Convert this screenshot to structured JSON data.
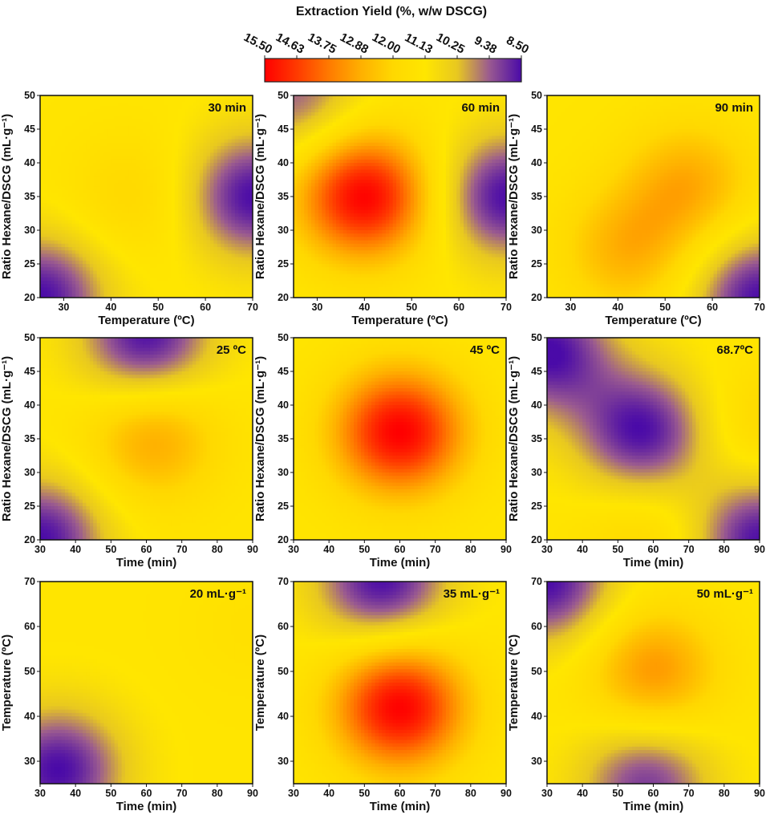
{
  "colorbar": {
    "title": "Extraction Yield (%, w/w DSCG)",
    "ticks": [
      "15.50",
      "14.63",
      "13.75",
      "12.88",
      "12.00",
      "11.13",
      "10.25",
      "9.38",
      "8.50"
    ],
    "stops": [
      "#ff0000",
      "#ff3a00",
      "#ff7a00",
      "#ffb000",
      "#ffd800",
      "#ffe600",
      "#e8c820",
      "#9a5a90",
      "#4a0aa8"
    ]
  },
  "chart_data": [
    {
      "type": "heatmap",
      "label": "30 min",
      "xlabel": "Temperature (ºC)",
      "ylabel": "Ratio Hexane/DSCG (mL·g⁻¹)",
      "xticks": [
        "30",
        "40",
        "50",
        "60",
        "70"
      ],
      "yticks": [
        "20",
        "25",
        "30",
        "35",
        "40",
        "45",
        "50"
      ],
      "xlim": [
        25,
        70
      ],
      "ylim": [
        20,
        50
      ],
      "peaks": [
        {
          "x": 45,
          "y": 35,
          "value": 12.0
        },
        {
          "x": 70,
          "y": 35,
          "value": 8.5
        },
        {
          "x": 25,
          "y": 20,
          "value": 8.5
        }
      ]
    },
    {
      "type": "heatmap",
      "label": "60 min",
      "xlabel": "Temperature (ºC)",
      "ylabel": "Ratio Hexane/DSCG (mL·g⁻¹)",
      "xticks": [
        "30",
        "40",
        "50",
        "60",
        "70"
      ],
      "yticks": [
        "20",
        "25",
        "30",
        "35",
        "40",
        "45",
        "50"
      ],
      "xlim": [
        25,
        70
      ],
      "ylim": [
        20,
        50
      ],
      "peaks": [
        {
          "x": 40,
          "y": 35,
          "value": 15.5
        },
        {
          "x": 70,
          "y": 35,
          "value": 8.5
        },
        {
          "x": 25,
          "y": 50,
          "value": 9.4
        }
      ]
    },
    {
      "type": "heatmap",
      "label": "90 min",
      "xlabel": "Temperature (ºC)",
      "ylabel": "Ratio Hexane/DSCG (mL·g⁻¹)",
      "xticks": [
        "30",
        "40",
        "50",
        "60",
        "70"
      ],
      "yticks": [
        "20",
        "25",
        "30",
        "35",
        "40",
        "45",
        "50"
      ],
      "xlim": [
        25,
        70
      ],
      "ylim": [
        20,
        50
      ],
      "peaks": [
        {
          "x": 55,
          "y": 37,
          "value": 12.9
        },
        {
          "x": 42,
          "y": 27,
          "value": 12.8
        },
        {
          "x": 70,
          "y": 20,
          "value": 8.5
        }
      ]
    },
    {
      "type": "heatmap",
      "label": "25 ºC",
      "xlabel": "Time (min)",
      "ylabel": "Ratio Hexane/DSCG (mL·g⁻¹)",
      "xticks": [
        "30",
        "40",
        "50",
        "60",
        "70",
        "80",
        "90"
      ],
      "yticks": [
        "20",
        "25",
        "30",
        "35",
        "40",
        "45",
        "50"
      ],
      "xlim": [
        30,
        90
      ],
      "ylim": [
        20,
        50
      ],
      "peaks": [
        {
          "x": 62,
          "y": 35,
          "value": 13.0
        },
        {
          "x": 60,
          "y": 50,
          "value": 8.5
        },
        {
          "x": 30,
          "y": 20,
          "value": 8.5
        }
      ]
    },
    {
      "type": "heatmap",
      "label": "45 ºC",
      "xlabel": "Time (min)",
      "ylabel": "Ratio Hexane/DSCG (mL·g⁻¹)",
      "xticks": [
        "30",
        "40",
        "50",
        "60",
        "70",
        "80",
        "90"
      ],
      "yticks": [
        "20",
        "25",
        "30",
        "35",
        "40",
        "45",
        "50"
      ],
      "xlim": [
        30,
        90
      ],
      "ylim": [
        20,
        50
      ],
      "peaks": [
        {
          "x": 60,
          "y": 36,
          "value": 15.5
        }
      ]
    },
    {
      "type": "heatmap",
      "label": "68.7ºC",
      "xlabel": "Time (min)",
      "ylabel": "Ratio Hexane/DSCG (mL·g⁻¹)",
      "xticks": [
        "30",
        "40",
        "50",
        "60",
        "70",
        "80",
        "90"
      ],
      "yticks": [
        "20",
        "25",
        "30",
        "35",
        "40",
        "45",
        "50"
      ],
      "xlim": [
        30,
        90
      ],
      "ylim": [
        20,
        50
      ],
      "peaks": [
        {
          "x": 57,
          "y": 36,
          "value": 8.5
        },
        {
          "x": 30,
          "y": 48,
          "value": 8.5
        },
        {
          "x": 90,
          "y": 20,
          "value": 8.5
        },
        {
          "x": 58,
          "y": 21,
          "value": 12.0
        },
        {
          "x": 90,
          "y": 37,
          "value": 12.0
        }
      ]
    },
    {
      "type": "heatmap",
      "label": "20 mL·g⁻¹",
      "xlabel": "Time (min)",
      "ylabel": "Temperature (ºC)",
      "xticks": [
        "30",
        "40",
        "50",
        "60",
        "70",
        "80",
        "90"
      ],
      "yticks": [
        "30",
        "40",
        "50",
        "60",
        "70"
      ],
      "xlim": [
        30,
        90
      ],
      "ylim": [
        25,
        70
      ],
      "peaks": [
        {
          "x": 35,
          "y": 28,
          "value": 8.5
        },
        {
          "x": 90,
          "y": 60,
          "value": 11.5
        }
      ]
    },
    {
      "type": "heatmap",
      "label": "35 mL·g⁻¹",
      "xlabel": "Time (min)",
      "ylabel": "Temperature (ºC)",
      "xticks": [
        "30",
        "40",
        "50",
        "60",
        "70",
        "80",
        "90"
      ],
      "yticks": [
        "30",
        "40",
        "50",
        "60",
        "70"
      ],
      "xlim": [
        30,
        90
      ],
      "ylim": [
        25,
        70
      ],
      "peaks": [
        {
          "x": 60,
          "y": 42,
          "value": 15.5
        },
        {
          "x": 55,
          "y": 70,
          "value": 8.5
        }
      ]
    },
    {
      "type": "heatmap",
      "label": "50 mL·g⁻¹",
      "xlabel": "Time (min)",
      "ylabel": "Temperature (ºC)",
      "xticks": [
        "30",
        "40",
        "50",
        "60",
        "70",
        "80",
        "90"
      ],
      "yticks": [
        "30",
        "40",
        "50",
        "60",
        "70"
      ],
      "xlim": [
        30,
        90
      ],
      "ylim": [
        25,
        70
      ],
      "peaks": [
        {
          "x": 60,
          "y": 50,
          "value": 13.3
        },
        {
          "x": 30,
          "y": 70,
          "value": 8.5
        },
        {
          "x": 58,
          "y": 25,
          "value": 9.0
        }
      ]
    }
  ]
}
